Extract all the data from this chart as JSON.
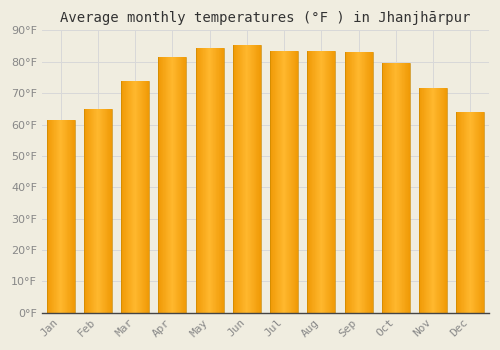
{
  "title": "Average monthly temperatures (°F ) in Jhanjhārpur",
  "months": [
    "Jan",
    "Feb",
    "Mar",
    "Apr",
    "May",
    "Jun",
    "Jul",
    "Aug",
    "Sep",
    "Oct",
    "Nov",
    "Dec"
  ],
  "values": [
    61.5,
    65.0,
    74.0,
    81.5,
    84.5,
    85.5,
    83.5,
    83.5,
    83.0,
    79.5,
    71.5,
    64.0
  ],
  "bar_color_center": "#FFB733",
  "bar_color_edge": "#F0A000",
  "background_color": "#f0ede0",
  "plot_bg_color": "#f0ede0",
  "grid_color": "#d8d8d8",
  "ylim": [
    0,
    90
  ],
  "yticks": [
    0,
    10,
    20,
    30,
    40,
    50,
    60,
    70,
    80,
    90
  ],
  "title_fontsize": 10,
  "tick_fontsize": 8,
  "tick_color": "#888888",
  "axis_color": "#444444"
}
